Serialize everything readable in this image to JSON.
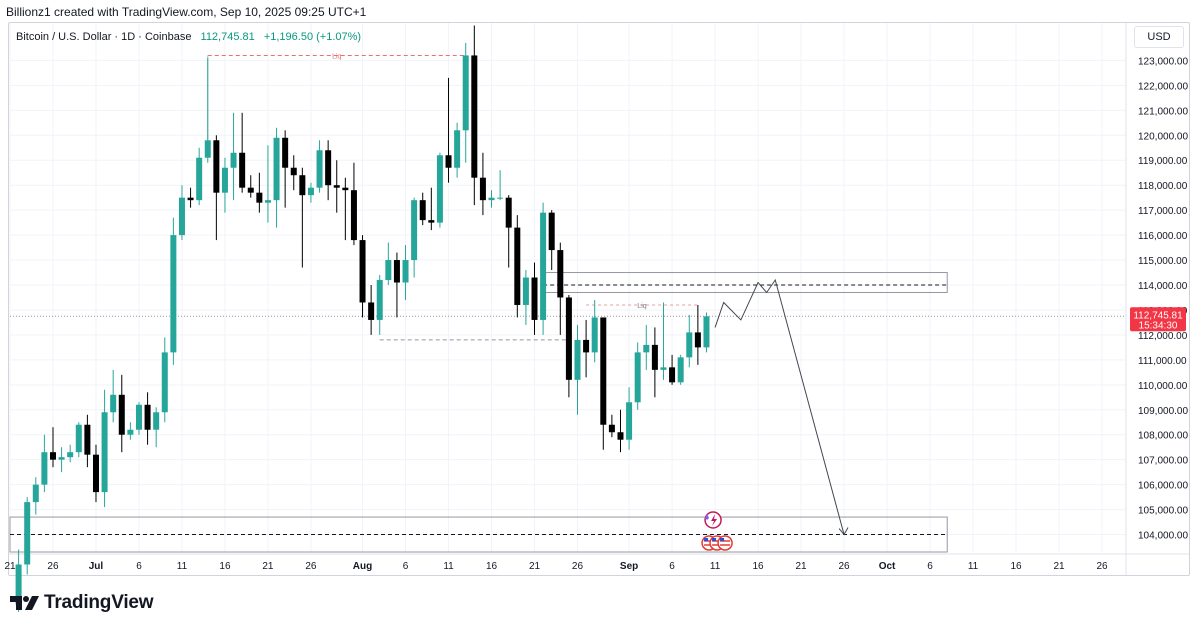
{
  "header": {
    "credit": "Billionz1 created with TradingView.com, Sep 10, 2025 09:25 UTC+1"
  },
  "legend": {
    "symbol": "Bitcoin / U.S. Dollar · 1D · Coinbase",
    "price": "112,745.81",
    "change": "+1,196.50 (+1.07%)"
  },
  "currency_label": "USD",
  "price_tag": {
    "price": "112,745.81",
    "countdown": "15:34:30"
  },
  "footer": {
    "brand": "TradingView",
    "logo_icon": "tradingview-logo-icon"
  },
  "colors": {
    "up": "#26a69a",
    "down": "#000000",
    "tag": "#f23645",
    "grid": "#f0f3fa",
    "liq": "#e57373"
  },
  "chart_data": {
    "type": "candlestick",
    "title": "Bitcoin / U.S. Dollar · 1D · Coinbase",
    "ylim": [
      103300,
      124500
    ],
    "y_ticks": [
      104000,
      105000,
      106000,
      107000,
      108000,
      109000,
      110000,
      111000,
      112000,
      113000,
      114000,
      115000,
      116000,
      117000,
      118000,
      119000,
      120000,
      121000,
      122000,
      123000
    ],
    "y_tick_labels": [
      "104,000.00",
      "105,000.00",
      "106,000.00",
      "107,000.00",
      "108,000.00",
      "109,000.00",
      "110,000.00",
      "111,000.00",
      "112,000.00",
      "113,000.00",
      "114,000.00",
      "115,000.00",
      "116,000.00",
      "117,000.00",
      "118,000.00",
      "119,000.00",
      "120,000.00",
      "121,000.00",
      "122,000.00",
      "123,000.00"
    ],
    "x_start": "2025-06-21",
    "x_end": "2025-10-26",
    "x_ticks": [
      {
        "date": "2025-06-21",
        "label": "21"
      },
      {
        "date": "2025-06-26",
        "label": "26"
      },
      {
        "date": "2025-07-01",
        "label": "Jul"
      },
      {
        "date": "2025-07-06",
        "label": "6"
      },
      {
        "date": "2025-07-11",
        "label": "11"
      },
      {
        "date": "2025-07-16",
        "label": "16"
      },
      {
        "date": "2025-07-21",
        "label": "21"
      },
      {
        "date": "2025-07-26",
        "label": "26"
      },
      {
        "date": "2025-08-01",
        "label": "Aug"
      },
      {
        "date": "2025-08-06",
        "label": "6"
      },
      {
        "date": "2025-08-11",
        "label": "11"
      },
      {
        "date": "2025-08-16",
        "label": "16"
      },
      {
        "date": "2025-08-21",
        "label": "21"
      },
      {
        "date": "2025-08-26",
        "label": "26"
      },
      {
        "date": "2025-09-01",
        "label": "Sep"
      },
      {
        "date": "2025-09-06",
        "label": "6"
      },
      {
        "date": "2025-09-11",
        "label": "11"
      },
      {
        "date": "2025-09-16",
        "label": "16"
      },
      {
        "date": "2025-09-21",
        "label": "21"
      },
      {
        "date": "2025-09-26",
        "label": "26"
      },
      {
        "date": "2025-10-01",
        "label": "Oct"
      },
      {
        "date": "2025-10-06",
        "label": "6"
      },
      {
        "date": "2025-10-11",
        "label": "11"
      },
      {
        "date": "2025-10-16",
        "label": "16"
      },
      {
        "date": "2025-10-21",
        "label": "21"
      },
      {
        "date": "2025-10-26",
        "label": "26"
      }
    ],
    "candles": [
      {
        "date": "2025-06-22",
        "o": 101200,
        "h": 103400,
        "l": 100900,
        "c": 102800
      },
      {
        "date": "2025-06-23",
        "o": 102800,
        "h": 105500,
        "l": 102400,
        "c": 105300
      },
      {
        "date": "2025-06-24",
        "o": 105300,
        "h": 106300,
        "l": 104800,
        "c": 106000
      },
      {
        "date": "2025-06-25",
        "o": 106000,
        "h": 108000,
        "l": 105700,
        "c": 107300
      },
      {
        "date": "2025-06-26",
        "o": 107300,
        "h": 108300,
        "l": 106700,
        "c": 107000
      },
      {
        "date": "2025-06-27",
        "o": 107000,
        "h": 107500,
        "l": 106500,
        "c": 107100
      },
      {
        "date": "2025-06-28",
        "o": 107100,
        "h": 107600,
        "l": 106900,
        "c": 107300
      },
      {
        "date": "2025-06-29",
        "o": 107300,
        "h": 108500,
        "l": 107100,
        "c": 108400
      },
      {
        "date": "2025-06-30",
        "o": 108400,
        "h": 108800,
        "l": 106700,
        "c": 107200
      },
      {
        "date": "2025-07-01",
        "o": 107200,
        "h": 107600,
        "l": 105300,
        "c": 105700
      },
      {
        "date": "2025-07-02",
        "o": 105700,
        "h": 109800,
        "l": 105100,
        "c": 108900
      },
      {
        "date": "2025-07-03",
        "o": 108900,
        "h": 110600,
        "l": 108500,
        "c": 109600
      },
      {
        "date": "2025-07-04",
        "o": 109600,
        "h": 110400,
        "l": 107300,
        "c": 108000
      },
      {
        "date": "2025-07-05",
        "o": 108000,
        "h": 108500,
        "l": 107800,
        "c": 108200
      },
      {
        "date": "2025-07-06",
        "o": 108200,
        "h": 109300,
        "l": 108000,
        "c": 109200
      },
      {
        "date": "2025-07-07",
        "o": 109200,
        "h": 109700,
        "l": 107600,
        "c": 108200
      },
      {
        "date": "2025-07-08",
        "o": 108200,
        "h": 109100,
        "l": 107500,
        "c": 108900
      },
      {
        "date": "2025-07-09",
        "o": 108900,
        "h": 111900,
        "l": 108500,
        "c": 111300
      },
      {
        "date": "2025-07-10",
        "o": 111300,
        "h": 116700,
        "l": 110800,
        "c": 116000
      },
      {
        "date": "2025-07-11",
        "o": 116000,
        "h": 118000,
        "l": 115800,
        "c": 117500
      },
      {
        "date": "2025-07-12",
        "o": 117500,
        "h": 117900,
        "l": 117100,
        "c": 117400
      },
      {
        "date": "2025-07-13",
        "o": 117400,
        "h": 119500,
        "l": 117200,
        "c": 119100
      },
      {
        "date": "2025-07-14",
        "o": 119100,
        "h": 123100,
        "l": 118900,
        "c": 119800
      },
      {
        "date": "2025-07-15",
        "o": 119800,
        "h": 120000,
        "l": 115800,
        "c": 117700
      },
      {
        "date": "2025-07-16",
        "o": 117700,
        "h": 119100,
        "l": 116900,
        "c": 118700
      },
      {
        "date": "2025-07-17",
        "o": 118700,
        "h": 120900,
        "l": 117400,
        "c": 119300
      },
      {
        "date": "2025-07-18",
        "o": 119300,
        "h": 120900,
        "l": 117700,
        "c": 117900
      },
      {
        "date": "2025-07-19",
        "o": 117900,
        "h": 118400,
        "l": 117500,
        "c": 117700
      },
      {
        "date": "2025-07-20",
        "o": 117700,
        "h": 118500,
        "l": 116900,
        "c": 117300
      },
      {
        "date": "2025-07-21",
        "o": 117300,
        "h": 119600,
        "l": 116500,
        "c": 117400
      },
      {
        "date": "2025-07-22",
        "o": 117400,
        "h": 120300,
        "l": 116300,
        "c": 119900
      },
      {
        "date": "2025-07-23",
        "o": 119900,
        "h": 120200,
        "l": 117100,
        "c": 118700
      },
      {
        "date": "2025-07-24",
        "o": 118700,
        "h": 119200,
        "l": 117800,
        "c": 118400
      },
      {
        "date": "2025-07-25",
        "o": 118400,
        "h": 118700,
        "l": 114700,
        "c": 117600
      },
      {
        "date": "2025-07-26",
        "o": 117600,
        "h": 118100,
        "l": 117300,
        "c": 117900
      },
      {
        "date": "2025-07-27",
        "o": 117900,
        "h": 119800,
        "l": 117700,
        "c": 119400
      },
      {
        "date": "2025-07-28",
        "o": 119400,
        "h": 119800,
        "l": 117400,
        "c": 118000
      },
      {
        "date": "2025-07-29",
        "o": 118000,
        "h": 119000,
        "l": 116900,
        "c": 117900
      },
      {
        "date": "2025-07-30",
        "o": 117900,
        "h": 118300,
        "l": 115800,
        "c": 117800
      },
      {
        "date": "2025-07-31",
        "o": 117800,
        "h": 118900,
        "l": 115600,
        "c": 115800
      },
      {
        "date": "2025-08-01",
        "o": 115800,
        "h": 116000,
        "l": 112700,
        "c": 113300
      },
      {
        "date": "2025-08-02",
        "o": 113300,
        "h": 114000,
        "l": 112000,
        "c": 112600
      },
      {
        "date": "2025-08-03",
        "o": 112600,
        "h": 114400,
        "l": 112000,
        "c": 114200
      },
      {
        "date": "2025-08-04",
        "o": 114200,
        "h": 115700,
        "l": 114000,
        "c": 115000
      },
      {
        "date": "2025-08-05",
        "o": 115000,
        "h": 115300,
        "l": 112700,
        "c": 114100
      },
      {
        "date": "2025-08-06",
        "o": 114100,
        "h": 115600,
        "l": 113400,
        "c": 115000
      },
      {
        "date": "2025-08-07",
        "o": 115000,
        "h": 117500,
        "l": 114300,
        "c": 117400
      },
      {
        "date": "2025-08-08",
        "o": 117400,
        "h": 117700,
        "l": 116400,
        "c": 116600
      },
      {
        "date": "2025-08-09",
        "o": 116600,
        "h": 117900,
        "l": 116200,
        "c": 116500
      },
      {
        "date": "2025-08-10",
        "o": 116500,
        "h": 119300,
        "l": 116300,
        "c": 119200
      },
      {
        "date": "2025-08-11",
        "o": 119200,
        "h": 122300,
        "l": 118100,
        "c": 118700
      },
      {
        "date": "2025-08-12",
        "o": 118700,
        "h": 120500,
        "l": 118300,
        "c": 120200
      },
      {
        "date": "2025-08-13",
        "o": 120200,
        "h": 123700,
        "l": 118900,
        "c": 123200
      },
      {
        "date": "2025-08-14",
        "o": 123200,
        "h": 124400,
        "l": 117200,
        "c": 118300
      },
      {
        "date": "2025-08-15",
        "o": 118300,
        "h": 119300,
        "l": 116800,
        "c": 117400
      },
      {
        "date": "2025-08-16",
        "o": 117400,
        "h": 117800,
        "l": 117100,
        "c": 117500
      },
      {
        "date": "2025-08-17",
        "o": 117500,
        "h": 118600,
        "l": 117400,
        "c": 117500
      },
      {
        "date": "2025-08-18",
        "o": 117500,
        "h": 117600,
        "l": 114700,
        "c": 116300
      },
      {
        "date": "2025-08-19",
        "o": 116300,
        "h": 116800,
        "l": 112700,
        "c": 113200
      },
      {
        "date": "2025-08-20",
        "o": 113200,
        "h": 114600,
        "l": 112400,
        "c": 114300
      },
      {
        "date": "2025-08-21",
        "o": 114300,
        "h": 114900,
        "l": 112000,
        "c": 112600
      },
      {
        "date": "2025-08-22",
        "o": 112600,
        "h": 117300,
        "l": 112000,
        "c": 116900
      },
      {
        "date": "2025-08-23",
        "o": 116900,
        "h": 117000,
        "l": 114600,
        "c": 115400
      },
      {
        "date": "2025-08-24",
        "o": 115400,
        "h": 115700,
        "l": 112000,
        "c": 113500
      },
      {
        "date": "2025-08-25",
        "o": 113500,
        "h": 113600,
        "l": 109500,
        "c": 110200
      },
      {
        "date": "2025-08-26",
        "o": 110200,
        "h": 112400,
        "l": 108800,
        "c": 111800
      },
      {
        "date": "2025-08-27",
        "o": 111800,
        "h": 112600,
        "l": 110300,
        "c": 111300
      },
      {
        "date": "2025-08-28",
        "o": 111300,
        "h": 113400,
        "l": 110900,
        "c": 112700
      },
      {
        "date": "2025-08-29",
        "o": 112700,
        "h": 112700,
        "l": 107400,
        "c": 108400
      },
      {
        "date": "2025-08-30",
        "o": 108400,
        "h": 108800,
        "l": 107900,
        "c": 108100
      },
      {
        "date": "2025-08-31",
        "o": 108100,
        "h": 109000,
        "l": 107300,
        "c": 107800
      },
      {
        "date": "2025-09-01",
        "o": 107800,
        "h": 109900,
        "l": 107400,
        "c": 109300
      },
      {
        "date": "2025-09-02",
        "o": 109300,
        "h": 111700,
        "l": 109000,
        "c": 111300
      },
      {
        "date": "2025-09-03",
        "o": 111300,
        "h": 112400,
        "l": 110600,
        "c": 111600
      },
      {
        "date": "2025-09-04",
        "o": 111600,
        "h": 112300,
        "l": 109500,
        "c": 110600
      },
      {
        "date": "2025-09-05",
        "o": 110600,
        "h": 113300,
        "l": 110200,
        "c": 110700
      },
      {
        "date": "2025-09-06",
        "o": 110700,
        "h": 111200,
        "l": 110000,
        "c": 110100
      },
      {
        "date": "2025-09-07",
        "o": 110100,
        "h": 111200,
        "l": 110000,
        "c": 111100
      },
      {
        "date": "2025-09-08",
        "o": 111100,
        "h": 112800,
        "l": 110700,
        "c": 112100
      },
      {
        "date": "2025-09-09",
        "o": 112100,
        "h": 113200,
        "l": 110800,
        "c": 111500
      },
      {
        "date": "2025-09-10",
        "o": 111500,
        "h": 112900,
        "l": 111300,
        "c": 112745
      }
    ],
    "annotations": {
      "top_liq_label": "Liq",
      "top_liq_price": 123200,
      "top_liq_from": "2025-07-14",
      "top_liq_to": "2025-08-13",
      "support_price": 111800,
      "support_from": "2025-08-03",
      "support_to": "2025-08-25",
      "mid_liq_label": "Liq",
      "mid_liq_price": 113200,
      "mid_liq_from": "2025-08-27",
      "mid_liq_to": "2025-09-09",
      "resistance_zone": [
        113700,
        114500
      ],
      "resistance_dashed": 114000,
      "zone_from": "2025-08-22",
      "zone_to": "2025-10-08",
      "target_zone": [
        103300,
        104700
      ],
      "target_dashed": 104000,
      "projection": [
        {
          "date": "2025-09-11",
          "price": 112300
        },
        {
          "date": "2025-09-12",
          "price": 113300
        },
        {
          "date": "2025-09-14",
          "price": 112600
        },
        {
          "date": "2025-09-16",
          "price": 114100
        },
        {
          "date": "2025-09-17",
          "price": 113700
        },
        {
          "date": "2025-09-18",
          "price": 114200
        },
        {
          "date": "2025-09-26",
          "price": 104000
        }
      ],
      "current_price_line": 112745.81
    }
  }
}
